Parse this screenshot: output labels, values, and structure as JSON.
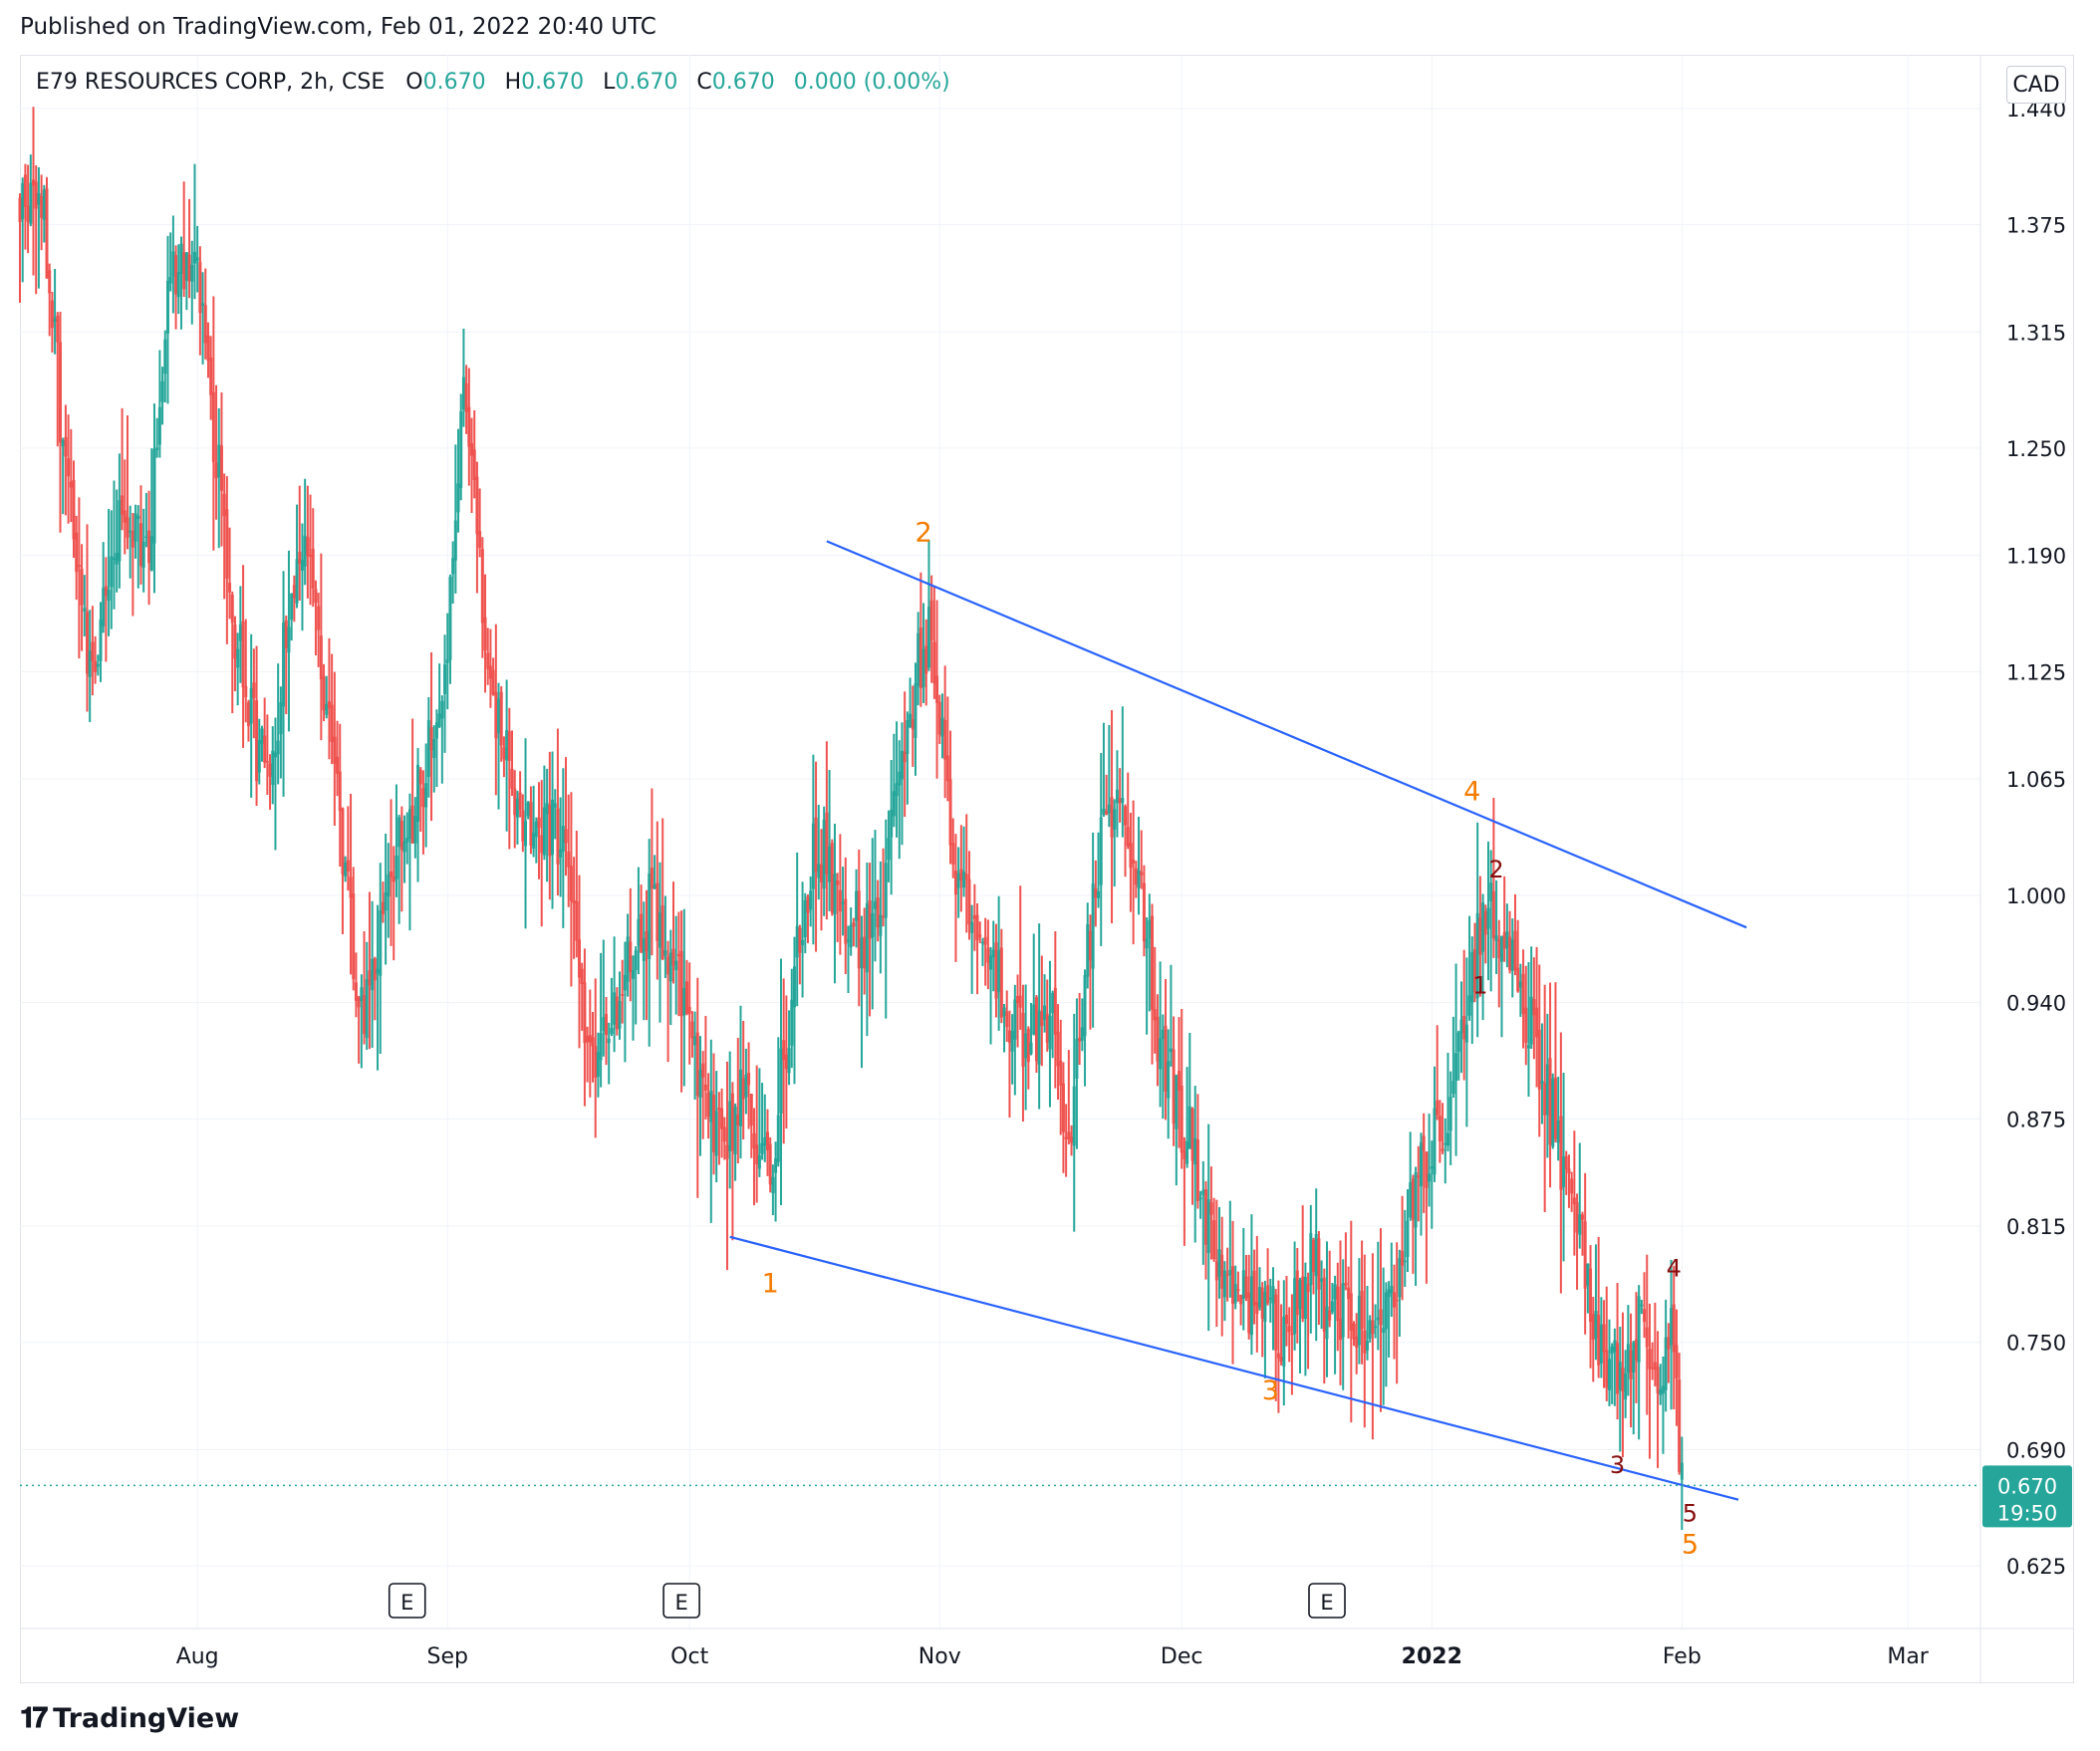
{
  "header": {
    "published": "Published on TradingView.com, Feb 01, 2022 20:40 UTC"
  },
  "legend": {
    "symbol": "E79 RESOURCES CORP, 2h, CSE",
    "o_label": "O",
    "o_value": "0.670",
    "h_label": "H",
    "h_value": "0.670",
    "l_label": "L",
    "l_value": "0.670",
    "c_label": "C",
    "c_value": "0.670",
    "change": "0.000 (0.00%)"
  },
  "currency": "CAD",
  "footer": {
    "brand": "TradingView"
  },
  "colors": {
    "up": "#26a69a",
    "down": "#ef5350",
    "trendline": "#2962ff",
    "wave_primary": "#f57c00",
    "wave_minor": "#880e0e",
    "price_tag": "#26a69a"
  },
  "chart_data": {
    "type": "candlestick",
    "y_ticks": [
      "1.440",
      "1.375",
      "1.315",
      "1.250",
      "1.190",
      "1.125",
      "1.065",
      "1.000",
      "0.940",
      "0.875",
      "0.815",
      "0.750",
      "0.690",
      "0.625"
    ],
    "ylim": [
      0.59,
      1.47
    ],
    "x_ticks": [
      {
        "label": "Aug",
        "date": "2021-08-01",
        "bold": false
      },
      {
        "label": "Sep",
        "date": "2021-09-01",
        "bold": false
      },
      {
        "label": "Oct",
        "date": "2021-10-01",
        "bold": false
      },
      {
        "label": "Nov",
        "date": "2021-11-01",
        "bold": false
      },
      {
        "label": "Dec",
        "date": "2021-12-01",
        "bold": false
      },
      {
        "label": "2022",
        "date": "2022-01-01",
        "bold": true
      },
      {
        "label": "Feb",
        "date": "2022-02-01",
        "bold": false
      },
      {
        "label": "Mar",
        "date": "2022-03-01",
        "bold": false
      }
    ],
    "xlim": [
      "2021-07-10",
      "2022-03-10"
    ],
    "current_price": {
      "value": "0.670",
      "countdown": "19:50",
      "y": 0.67
    },
    "earnings_markers": [
      "2021-08-27",
      "2021-09-30",
      "2021-12-19"
    ],
    "trendlines": [
      {
        "name": "upper",
        "from": {
          "date": "2021-10-18",
          "y": 1.198
        },
        "to": {
          "date": "2022-02-09",
          "y": 0.982
        }
      },
      {
        "name": "lower",
        "from": {
          "date": "2021-10-06",
          "y": 0.809
        },
        "to": {
          "date": "2022-02-08",
          "y": 0.662
        }
      }
    ],
    "wave_labels": [
      {
        "text": "1",
        "date": "2021-10-11",
        "y": 0.778,
        "level": "primary"
      },
      {
        "text": "2",
        "date": "2021-10-30",
        "y": 1.198,
        "level": "primary"
      },
      {
        "text": "3",
        "date": "2021-12-12",
        "y": 0.718,
        "level": "primary"
      },
      {
        "text": "4",
        "date": "2022-01-06",
        "y": 1.053,
        "level": "primary"
      },
      {
        "text": "5",
        "date": "2022-02-02",
        "y": 0.632,
        "level": "primary"
      },
      {
        "text": "1",
        "date": "2022-01-07",
        "y": 0.945,
        "level": "minor"
      },
      {
        "text": "2",
        "date": "2022-01-09",
        "y": 1.01,
        "level": "minor"
      },
      {
        "text": "3",
        "date": "2022-01-24",
        "y": 0.677,
        "level": "minor"
      },
      {
        "text": "4",
        "date": "2022-01-31",
        "y": 0.787,
        "level": "minor"
      },
      {
        "text": "5",
        "date": "2022-02-02",
        "y": 0.65,
        "level": "minor"
      }
    ],
    "anchors": [
      {
        "date": "2021-07-10",
        "y": 1.39
      },
      {
        "date": "2021-07-13",
        "y": 1.38
      },
      {
        "date": "2021-07-16",
        "y": 1.22
      },
      {
        "date": "2021-07-19",
        "y": 1.13
      },
      {
        "date": "2021-07-22",
        "y": 1.2
      },
      {
        "date": "2021-07-26",
        "y": 1.2
      },
      {
        "date": "2021-07-29",
        "y": 1.36
      },
      {
        "date": "2021-08-01",
        "y": 1.35
      },
      {
        "date": "2021-08-03",
        "y": 1.26
      },
      {
        "date": "2021-08-07",
        "y": 1.1
      },
      {
        "date": "2021-08-10",
        "y": 1.08
      },
      {
        "date": "2021-08-14",
        "y": 1.21
      },
      {
        "date": "2021-08-18",
        "y": 1.07
      },
      {
        "date": "2021-08-21",
        "y": 0.93
      },
      {
        "date": "2021-08-25",
        "y": 1.01
      },
      {
        "date": "2021-08-29",
        "y": 1.06
      },
      {
        "date": "2021-09-01",
        "y": 1.14
      },
      {
        "date": "2021-09-03",
        "y": 1.29
      },
      {
        "date": "2021-09-06",
        "y": 1.13
      },
      {
        "date": "2021-09-10",
        "y": 1.04
      },
      {
        "date": "2021-09-15",
        "y": 1.04
      },
      {
        "date": "2021-09-19",
        "y": 0.9
      },
      {
        "date": "2021-09-23",
        "y": 0.96
      },
      {
        "date": "2021-09-27",
        "y": 1.0
      },
      {
        "date": "2021-10-01",
        "y": 0.92
      },
      {
        "date": "2021-10-04",
        "y": 0.86
      },
      {
        "date": "2021-10-08",
        "y": 0.89
      },
      {
        "date": "2021-10-11",
        "y": 0.84
      },
      {
        "date": "2021-10-14",
        "y": 0.96
      },
      {
        "date": "2021-10-17",
        "y": 1.03
      },
      {
        "date": "2021-10-21",
        "y": 0.97
      },
      {
        "date": "2021-10-25",
        "y": 1.0
      },
      {
        "date": "2021-10-28",
        "y": 1.1
      },
      {
        "date": "2021-10-31",
        "y": 1.15
      },
      {
        "date": "2021-11-03",
        "y": 1.01
      },
      {
        "date": "2021-11-07",
        "y": 0.97
      },
      {
        "date": "2021-11-11",
        "y": 0.92
      },
      {
        "date": "2021-11-15",
        "y": 0.93
      },
      {
        "date": "2021-11-17",
        "y": 0.85
      },
      {
        "date": "2021-11-20",
        "y": 1.0
      },
      {
        "date": "2021-11-23",
        "y": 1.07
      },
      {
        "date": "2021-11-26",
        "y": 1.0
      },
      {
        "date": "2021-11-29",
        "y": 0.9
      },
      {
        "date": "2021-12-02",
        "y": 0.86
      },
      {
        "date": "2021-12-05",
        "y": 0.8
      },
      {
        "date": "2021-12-09",
        "y": 0.77
      },
      {
        "date": "2021-12-13",
        "y": 0.76
      },
      {
        "date": "2021-12-17",
        "y": 0.79
      },
      {
        "date": "2021-12-21",
        "y": 0.76
      },
      {
        "date": "2021-12-25",
        "y": 0.76
      },
      {
        "date": "2021-12-28",
        "y": 0.79
      },
      {
        "date": "2021-12-31",
        "y": 0.86
      },
      {
        "date": "2022-01-03",
        "y": 0.87
      },
      {
        "date": "2022-01-06",
        "y": 0.97
      },
      {
        "date": "2022-01-09",
        "y": 0.99
      },
      {
        "date": "2022-01-12",
        "y": 0.95
      },
      {
        "date": "2022-01-15",
        "y": 0.9
      },
      {
        "date": "2022-01-18",
        "y": 0.84
      },
      {
        "date": "2022-01-21",
        "y": 0.77
      },
      {
        "date": "2022-01-24",
        "y": 0.72
      },
      {
        "date": "2022-01-27",
        "y": 0.76
      },
      {
        "date": "2022-01-29",
        "y": 0.73
      },
      {
        "date": "2022-01-31",
        "y": 0.76
      },
      {
        "date": "2022-02-01",
        "y": 0.67
      }
    ]
  }
}
